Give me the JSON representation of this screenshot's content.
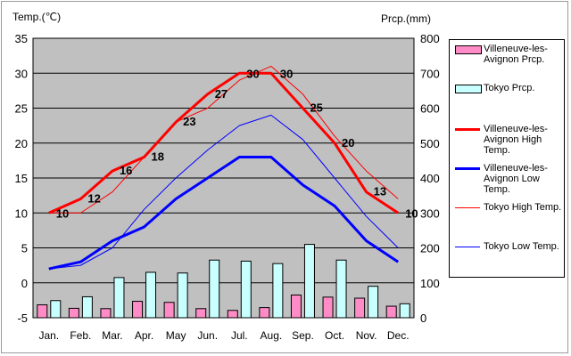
{
  "chart_data": {
    "type": "bar+line",
    "y_left_label": "Temp.(℃)",
    "y_right_label": "Prcp.(mm)",
    "ylim_left": [
      -5,
      35
    ],
    "ylim_right": [
      0,
      800
    ],
    "left_ticks": [
      35,
      30,
      25,
      20,
      15,
      10,
      5,
      0,
      -5
    ],
    "right_ticks": [
      800,
      700,
      600,
      500,
      400,
      300,
      200,
      100,
      0
    ],
    "categories": [
      "Jan.",
      "Feb.",
      "Mar.",
      "Apr.",
      "May",
      "Jun.",
      "Jul.",
      "Aug.",
      "Sep.",
      "Oct.",
      "Nov.",
      "Dec."
    ],
    "grid": "horizontal",
    "legend_position": "right",
    "series": [
      {
        "name": "Villeneuve-les-Avignon Prcp.",
        "kind": "bar",
        "axis": "right",
        "color": "#ff8cc6",
        "values": [
          37,
          27,
          26,
          47,
          44,
          26,
          21,
          29,
          65,
          59,
          56,
          33
        ]
      },
      {
        "name": "Tokyo Prcp.",
        "kind": "bar",
        "axis": "right",
        "color": "#c8ffff",
        "values": [
          49,
          60,
          115,
          130,
          128,
          165,
          162,
          155,
          210,
          165,
          90,
          40
        ]
      },
      {
        "name": "Villeneuve-les-Avignon High Temp.",
        "kind": "line",
        "axis": "left",
        "color": "#ff0000",
        "width": 3,
        "values": [
          10,
          12,
          16,
          18,
          23,
          27,
          30,
          30,
          25,
          20,
          13,
          10
        ],
        "labels": true
      },
      {
        "name": "Villeneuve-les-Avignon Low Temp.",
        "kind": "line",
        "axis": "left",
        "color": "#0000ff",
        "width": 3,
        "values": [
          2,
          3,
          6,
          8,
          12,
          15,
          18,
          18,
          14,
          11,
          6,
          3
        ]
      },
      {
        "name": "Tokyo High Temp.",
        "kind": "line",
        "axis": "left",
        "color": "#ff0000",
        "width": 1,
        "values": [
          10,
          10,
          13,
          18,
          23,
          25,
          29,
          31,
          27,
          21,
          16,
          12
        ]
      },
      {
        "name": "Tokyo Low Temp.",
        "kind": "line",
        "axis": "left",
        "color": "#0000ff",
        "width": 1,
        "values": [
          2,
          2.5,
          5,
          10.5,
          15,
          19,
          22.5,
          24,
          20.5,
          15,
          9.5,
          5
        ]
      }
    ]
  }
}
